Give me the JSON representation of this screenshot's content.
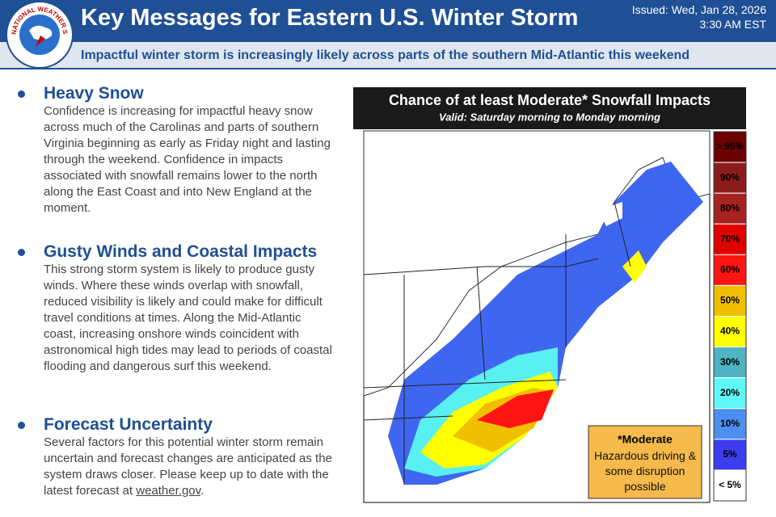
{
  "header": {
    "title": "Key Messages for Eastern U.S. Winter Storm",
    "issued_line1": "Issued: Wed, Jan 28, 2026",
    "issued_line2": "3:30 AM EST",
    "logo_text": "NATIONAL WEATHER SERVICE",
    "subtitle": "Impactful winter storm is increasingly likely across parts of the southern Mid-Atlantic this weekend"
  },
  "messages": [
    {
      "heading": "Heavy Snow",
      "body": "Confidence is increasing for impactful heavy snow across much of the Carolinas and parts of southern Virginia beginning as early as Friday night and lasting through the weekend. Confidence in impacts associated with snowfall remains lower to the north along the East Coast and into New England at the moment."
    },
    {
      "heading": "Gusty Winds and Coastal Impacts",
      "body": "This strong storm system is likely to produce gusty winds. Where these winds overlap with snowfall, reduced visibility is likely and could make for difficult travel conditions at times. Along the Mid-Atlantic coast, increasing onshore winds coincident with astronomical high tides may lead to periods of coastal flooding and dangerous surf this weekend."
    },
    {
      "heading": "Forecast Uncertainty",
      "body": "Several factors for this potential winter storm remain uncertain and forecast changes are anticipated as the system draws closer. Please keep up to date with the latest forecast at",
      "link": "weather.gov",
      "suffix": "."
    }
  ],
  "map": {
    "title": "Chance of at least Moderate* Snowfall Impacts",
    "valid": "Valid: Saturday morning to Monday morning",
    "legend": [
      {
        "label": "> 95%",
        "color": "#6b0000"
      },
      {
        "label": "90%",
        "color": "#8b1c1c"
      },
      {
        "label": "80%",
        "color": "#a82222"
      },
      {
        "label": "70%",
        "color": "#e00000"
      },
      {
        "label": "60%",
        "color": "#ff1414"
      },
      {
        "label": "50%",
        "color": "#f0c000"
      },
      {
        "label": "40%",
        "color": "#ffff00"
      },
      {
        "label": "30%",
        "color": "#4eb3c2"
      },
      {
        "label": "20%",
        "color": "#5ff7f7"
      },
      {
        "label": "10%",
        "color": "#4d8ff0"
      },
      {
        "label": "5%",
        "color": "#3c3cf0"
      },
      {
        "label": "< 5%",
        "color": "#ffffff"
      }
    ],
    "note_title": "*Moderate",
    "note_body": "Hazardous driving & some disruption possible"
  }
}
